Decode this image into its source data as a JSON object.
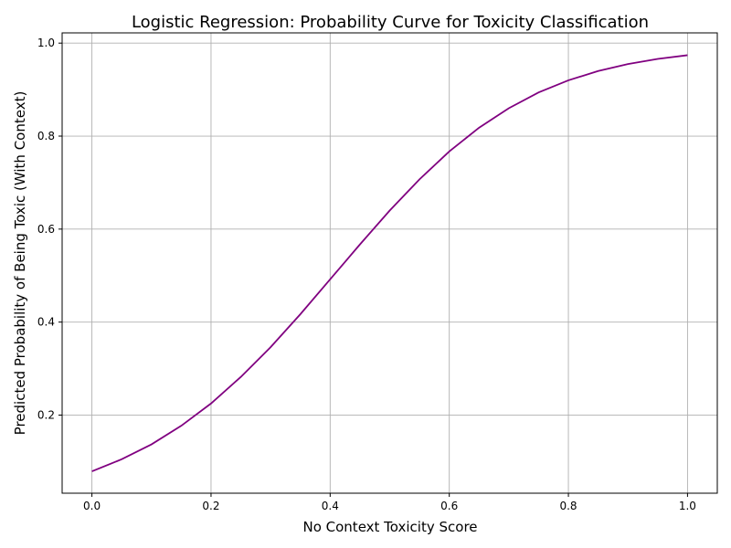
{
  "chart_data": {
    "type": "line",
    "title": "Logistic Regression: Probability Curve for Toxicity Classification",
    "xlabel": "No Context Toxicity Score",
    "ylabel": "Predicted Probability of Being Toxic (With Context)",
    "xlim": [
      -0.05,
      1.05
    ],
    "ylim": [
      0.032,
      1.022
    ],
    "xticks": [
      0.0,
      0.2,
      0.4,
      0.6,
      0.8,
      1.0
    ],
    "xtick_labels": [
      "0.0",
      "0.2",
      "0.4",
      "0.6",
      "0.8",
      "1.0"
    ],
    "yticks": [
      0.2,
      0.4,
      0.6,
      0.8,
      1.0
    ],
    "ytick_labels": [
      "0.2",
      "0.4",
      "0.6",
      "0.8",
      "1.0"
    ],
    "grid": true,
    "series": [
      {
        "color": "#800080",
        "x": [
          0.0,
          0.05,
          0.1,
          0.15,
          0.2,
          0.25,
          0.3,
          0.35,
          0.4,
          0.45,
          0.5,
          0.55,
          0.6,
          0.65,
          0.7,
          0.75,
          0.8,
          0.85,
          0.9,
          0.95,
          1.0
        ],
        "y": [
          0.079,
          0.105,
          0.137,
          0.177,
          0.225,
          0.282,
          0.346,
          0.417,
          0.492,
          0.567,
          0.64,
          0.707,
          0.767,
          0.818,
          0.86,
          0.894,
          0.92,
          0.94,
          0.955,
          0.966,
          0.974
        ]
      }
    ]
  }
}
